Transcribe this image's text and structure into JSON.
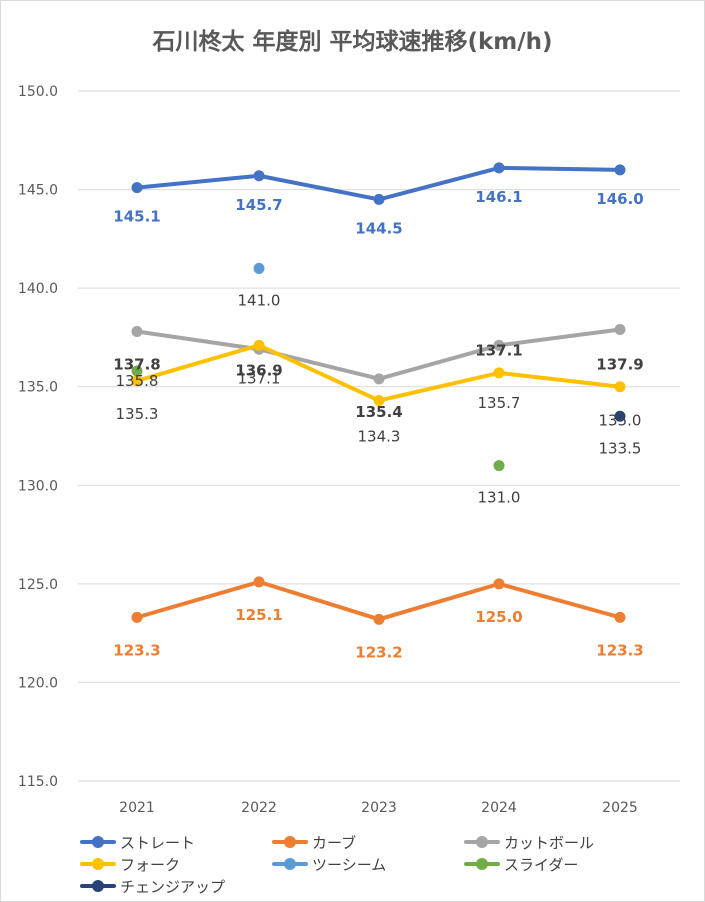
{
  "chart_data": {
    "type": "line",
    "title": "石川柊太 年度別 平均球速推移(km/h)",
    "categories": [
      "2021",
      "2022",
      "2023",
      "2024",
      "2025"
    ],
    "ylim": [
      115.0,
      150.0
    ],
    "y_ticks": [
      "115.0",
      "120.0",
      "125.0",
      "130.0",
      "135.0",
      "140.0",
      "145.0",
      "150.0"
    ],
    "grid": true,
    "legend_position": "bottom",
    "series": [
      {
        "name": "ストレート",
        "color": "#4472c4",
        "line": true,
        "bold_labels": true,
        "values": [
          145.1,
          145.7,
          144.5,
          146.1,
          146.0
        ],
        "labels": [
          "145.1",
          "145.7",
          "144.5",
          "146.1",
          "146.0"
        ]
      },
      {
        "name": "カーブ",
        "color": "#ed7d31",
        "line": true,
        "bold_labels": true,
        "values": [
          123.3,
          125.1,
          123.2,
          125.0,
          123.3
        ],
        "labels": [
          "123.3",
          "125.1",
          "123.2",
          "125.0",
          "123.3"
        ]
      },
      {
        "name": "カットボール",
        "color": "#a5a5a5",
        "line": true,
        "bold_labels": true,
        "values": [
          137.8,
          136.9,
          135.4,
          137.1,
          137.9
        ],
        "labels": [
          "137.8",
          "136.9",
          "135.4",
          "137.1",
          "137.9"
        ]
      },
      {
        "name": "フォーク",
        "color": "#ffc000",
        "line": true,
        "bold_labels": false,
        "values": [
          135.3,
          137.1,
          134.3,
          135.7,
          135.0
        ],
        "labels": [
          "135.3",
          "137.1",
          "134.3",
          "135.7",
          "135.0"
        ]
      },
      {
        "name": "ツーシーム",
        "color": "#5b9bd5",
        "line": false,
        "bold_labels": false,
        "values": [
          null,
          141.0,
          null,
          null,
          null
        ],
        "labels": [
          null,
          "141.0",
          null,
          null,
          null
        ]
      },
      {
        "name": "スライダー",
        "color": "#70ad47",
        "line": false,
        "bold_labels": false,
        "values": [
          135.8,
          null,
          null,
          131.0,
          null
        ],
        "labels": [
          "135.8",
          null,
          null,
          "131.0",
          null
        ]
      },
      {
        "name": "チェンジアップ",
        "color": "#264478",
        "line": false,
        "bold_labels": false,
        "values": [
          null,
          null,
          null,
          null,
          133.5
        ],
        "labels": [
          null,
          null,
          null,
          null,
          "133.5"
        ]
      }
    ]
  }
}
